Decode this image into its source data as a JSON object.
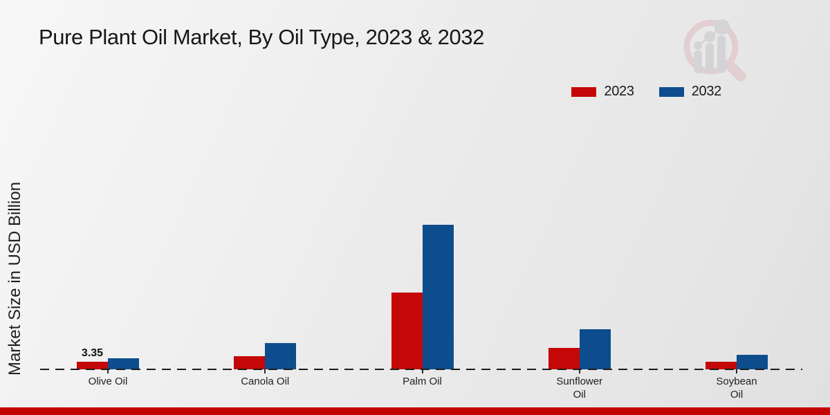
{
  "header": {
    "title": "Pure Plant Oil Market, By Oil Type, 2023 & 2032"
  },
  "chart_data": {
    "type": "bar",
    "title": "Pure Plant Oil Market, By Oil Type, 2023 & 2032",
    "ylabel": "Market Size in USD Billion",
    "categories": [
      "Olive Oil",
      "Canola Oil",
      "Palm Oil",
      "Sunflower Oil",
      "Soybean Oil"
    ],
    "category_label_lines": [
      [
        "Olive Oil"
      ],
      [
        "Canola Oil"
      ],
      [
        "Palm Oil"
      ],
      [
        "Sunflower",
        "Oil"
      ],
      [
        "Soybean",
        "Oil"
      ]
    ],
    "series": [
      {
        "name": "2023",
        "color": "#c40707",
        "values": [
          3.35,
          5.5,
          32.3,
          9.0,
          3.2
        ]
      },
      {
        "name": "2032",
        "color": "#0d4d8d",
        "values": [
          4.7,
          11.1,
          60.9,
          16.9,
          6.1
        ]
      }
    ],
    "annotations": [
      {
        "category_index": 0,
        "series_index": 0,
        "text": "3.35"
      }
    ],
    "ylim": [
      0,
      65
    ],
    "grid": false,
    "legend_position": "top-right",
    "baseline_style": "dashed"
  },
  "watermark": {
    "icon": "magnifier-bar-chart-logo"
  },
  "footer": {
    "bar_color": "#c40000"
  }
}
